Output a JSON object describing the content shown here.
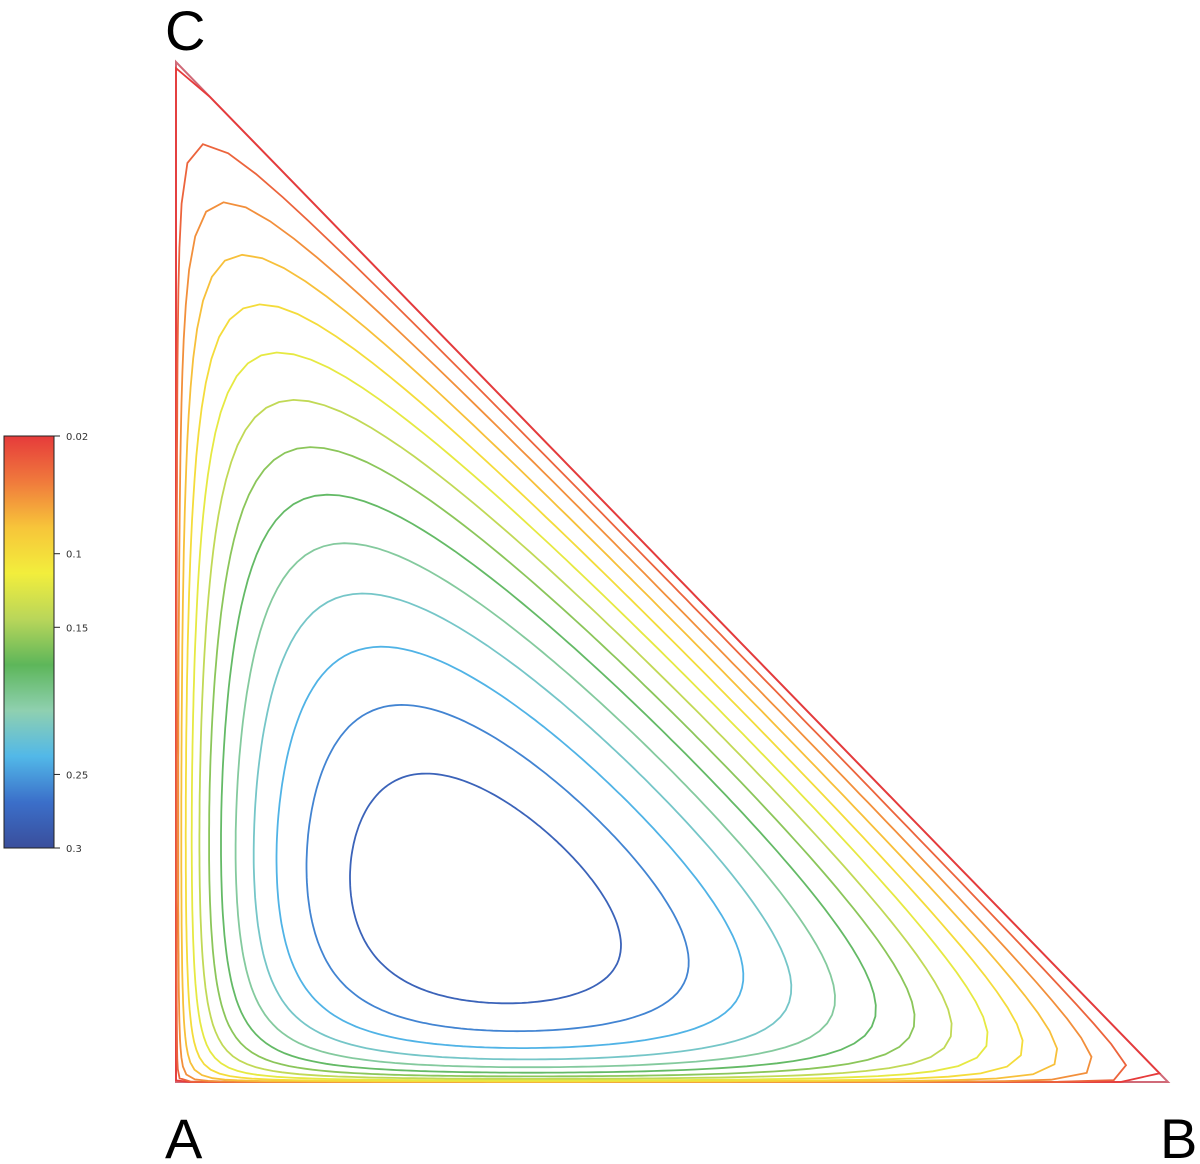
{
  "chart_data": {
    "type": "ternary-contour",
    "title": "",
    "vertices": {
      "a": "A",
      "b": "B",
      "c": "C"
    },
    "center": {
      "a": 0.53,
      "b": 0.3,
      "c": 0.17
    },
    "levels": [
      0.02,
      0.04,
      0.06,
      0.08,
      0.1,
      0.12,
      0.14,
      0.16,
      0.18,
      0.2,
      0.22,
      0.24,
      0.26,
      0.28,
      0.3
    ],
    "colorbar": {
      "range": [
        0.02,
        0.3
      ],
      "tick_labels": [
        "0.02",
        "0.1",
        "0.15",
        "0.25",
        "0.3"
      ],
      "tick_values": [
        0.02,
        0.1,
        0.15,
        0.25,
        0.3
      ],
      "colors": [
        "#e63b3b",
        "#f07a3c",
        "#f7c53a",
        "#f2ee3c",
        "#b9d65a",
        "#5db65a",
        "#8fd0b0",
        "#52b8e8",
        "#3b6fc9",
        "#3a4e9c"
      ]
    },
    "frame_color": "#d06a78"
  }
}
